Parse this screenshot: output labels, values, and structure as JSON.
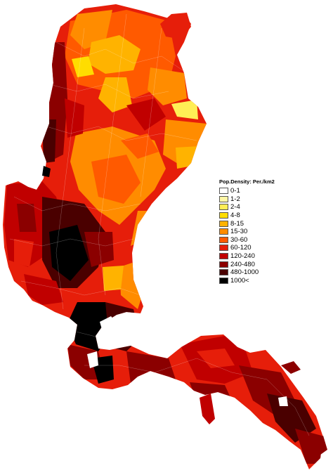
{
  "legend": {
    "title": "Pop.Density: Per./km2",
    "classes": [
      {
        "label": "0-1",
        "color": "#ffffff"
      },
      {
        "label": "1-2",
        "color": "#fff7a6"
      },
      {
        "label": "2-4",
        "color": "#ffee55"
      },
      {
        "label": "4-8",
        "color": "#ffdd00"
      },
      {
        "label": "8-15",
        "color": "#ffb300"
      },
      {
        "label": "15-30",
        "color": "#ff8c00"
      },
      {
        "label": "30-60",
        "color": "#ff5a00"
      },
      {
        "label": "60-120",
        "color": "#e61e0a"
      },
      {
        "label": "120-240",
        "color": "#c00000"
      },
      {
        "label": "240-480",
        "color": "#8b0000"
      },
      {
        "label": "480-1000",
        "color": "#4a0000"
      },
      {
        "label": "1000<",
        "color": "#000000"
      }
    ]
  }
}
